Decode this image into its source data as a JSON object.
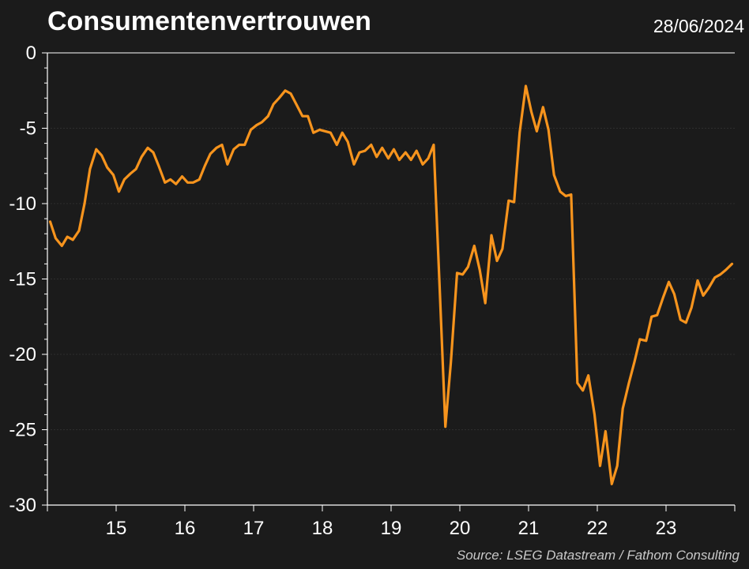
{
  "header": {
    "title": "Consumentenvertrouwen",
    "date": "28/06/2024"
  },
  "footer": {
    "source": "Source: LSEG Datastream / Fathom Consulting"
  },
  "colors": {
    "background": "#1b1b1b",
    "line": "#f7941d",
    "axis": "#ffffff",
    "grid": "#2e2e2e"
  },
  "chart_data": {
    "type": "line",
    "title": "Consumentenvertrouwen",
    "xlabel": "",
    "ylabel": "",
    "xlim": [
      14.0,
      24.0
    ],
    "ylim": [
      -30,
      0
    ],
    "grid": true,
    "y_ticks": [
      "0",
      "-5",
      "-10",
      "-15",
      "-20",
      "-25",
      "-30"
    ],
    "x_ticks": [
      "15",
      "16",
      "17",
      "18",
      "19",
      "20",
      "21",
      "22",
      "23"
    ],
    "series": [
      {
        "values": [
          [
            14.04,
            -11.2
          ],
          [
            14.12,
            -12.3
          ],
          [
            14.21,
            -12.8
          ],
          [
            14.29,
            -12.2
          ],
          [
            14.37,
            -12.4
          ],
          [
            14.46,
            -11.8
          ],
          [
            14.54,
            -10.0
          ],
          [
            14.62,
            -7.7
          ],
          [
            14.71,
            -6.4
          ],
          [
            14.79,
            -6.8
          ],
          [
            14.87,
            -7.6
          ],
          [
            14.96,
            -8.1
          ],
          [
            15.04,
            -9.2
          ],
          [
            15.12,
            -8.4
          ],
          [
            15.21,
            -8.0
          ],
          [
            15.29,
            -7.7
          ],
          [
            15.37,
            -6.9
          ],
          [
            15.46,
            -6.3
          ],
          [
            15.54,
            -6.6
          ],
          [
            15.62,
            -7.5
          ],
          [
            15.71,
            -8.6
          ],
          [
            15.79,
            -8.4
          ],
          [
            15.87,
            -8.7
          ],
          [
            15.96,
            -8.2
          ],
          [
            16.04,
            -8.6
          ],
          [
            16.12,
            -8.6
          ],
          [
            16.21,
            -8.4
          ],
          [
            16.29,
            -7.5
          ],
          [
            16.37,
            -6.7
          ],
          [
            16.46,
            -6.3
          ],
          [
            16.54,
            -6.1
          ],
          [
            16.62,
            -7.4
          ],
          [
            16.71,
            -6.4
          ],
          [
            16.79,
            -6.1
          ],
          [
            16.87,
            -6.1
          ],
          [
            16.96,
            -5.1
          ],
          [
            17.04,
            -4.8
          ],
          [
            17.12,
            -4.6
          ],
          [
            17.21,
            -4.2
          ],
          [
            17.29,
            -3.4
          ],
          [
            17.37,
            -3.0
          ],
          [
            17.46,
            -2.5
          ],
          [
            17.54,
            -2.7
          ],
          [
            17.62,
            -3.4
          ],
          [
            17.71,
            -4.2
          ],
          [
            17.79,
            -4.2
          ],
          [
            17.87,
            -5.3
          ],
          [
            17.96,
            -5.1
          ],
          [
            18.04,
            -5.2
          ],
          [
            18.12,
            -5.3
          ],
          [
            18.21,
            -6.1
          ],
          [
            18.29,
            -5.3
          ],
          [
            18.37,
            -5.9
          ],
          [
            18.46,
            -7.4
          ],
          [
            18.54,
            -6.6
          ],
          [
            18.62,
            -6.5
          ],
          [
            18.71,
            -6.1
          ],
          [
            18.79,
            -6.9
          ],
          [
            18.87,
            -6.3
          ],
          [
            18.96,
            -7.0
          ],
          [
            19.04,
            -6.4
          ],
          [
            19.12,
            -7.1
          ],
          [
            19.21,
            -6.6
          ],
          [
            19.29,
            -7.1
          ],
          [
            19.37,
            -6.5
          ],
          [
            19.46,
            -7.4
          ],
          [
            19.54,
            -7.0
          ],
          [
            19.62,
            -6.1
          ],
          [
            19.71,
            -16.0
          ],
          [
            19.79,
            -24.8
          ],
          [
            19.87,
            -20.5
          ],
          [
            19.96,
            -14.6
          ],
          [
            20.04,
            -14.7
          ],
          [
            20.12,
            -14.2
          ],
          [
            20.21,
            -12.8
          ],
          [
            20.29,
            -14.4
          ],
          [
            20.37,
            -16.6
          ],
          [
            20.46,
            -12.1
          ],
          [
            20.54,
            -13.8
          ],
          [
            20.62,
            -13.0
          ],
          [
            20.71,
            -9.8
          ],
          [
            20.79,
            -9.9
          ],
          [
            20.87,
            -5.3
          ],
          [
            20.96,
            -2.2
          ],
          [
            21.04,
            -3.9
          ],
          [
            21.12,
            -5.2
          ],
          [
            21.21,
            -3.6
          ],
          [
            21.29,
            -5.1
          ],
          [
            21.37,
            -8.1
          ],
          [
            21.46,
            -9.2
          ],
          [
            21.54,
            -9.5
          ],
          [
            21.62,
            -9.4
          ],
          [
            21.71,
            -21.9
          ],
          [
            21.79,
            -22.4
          ],
          [
            21.87,
            -21.4
          ],
          [
            21.96,
            -24.0
          ],
          [
            22.04,
            -27.4
          ],
          [
            22.12,
            -25.1
          ],
          [
            22.21,
            -28.6
          ],
          [
            22.29,
            -27.4
          ],
          [
            22.37,
            -23.6
          ],
          [
            22.46,
            -21.9
          ],
          [
            22.54,
            -20.5
          ],
          [
            22.62,
            -19.0
          ],
          [
            22.71,
            -19.1
          ],
          [
            22.79,
            -17.5
          ],
          [
            22.87,
            -17.4
          ],
          [
            22.96,
            -16.2
          ],
          [
            23.04,
            -15.2
          ],
          [
            23.12,
            -16.0
          ],
          [
            23.21,
            -17.7
          ],
          [
            23.29,
            -17.9
          ],
          [
            23.37,
            -16.9
          ],
          [
            23.46,
            -15.1
          ],
          [
            23.54,
            -16.1
          ],
          [
            23.62,
            -15.6
          ],
          [
            23.71,
            -14.9
          ],
          [
            23.79,
            -14.7
          ],
          [
            23.87,
            -14.4
          ],
          [
            23.96,
            -14.0
          ]
        ]
      }
    ]
  }
}
